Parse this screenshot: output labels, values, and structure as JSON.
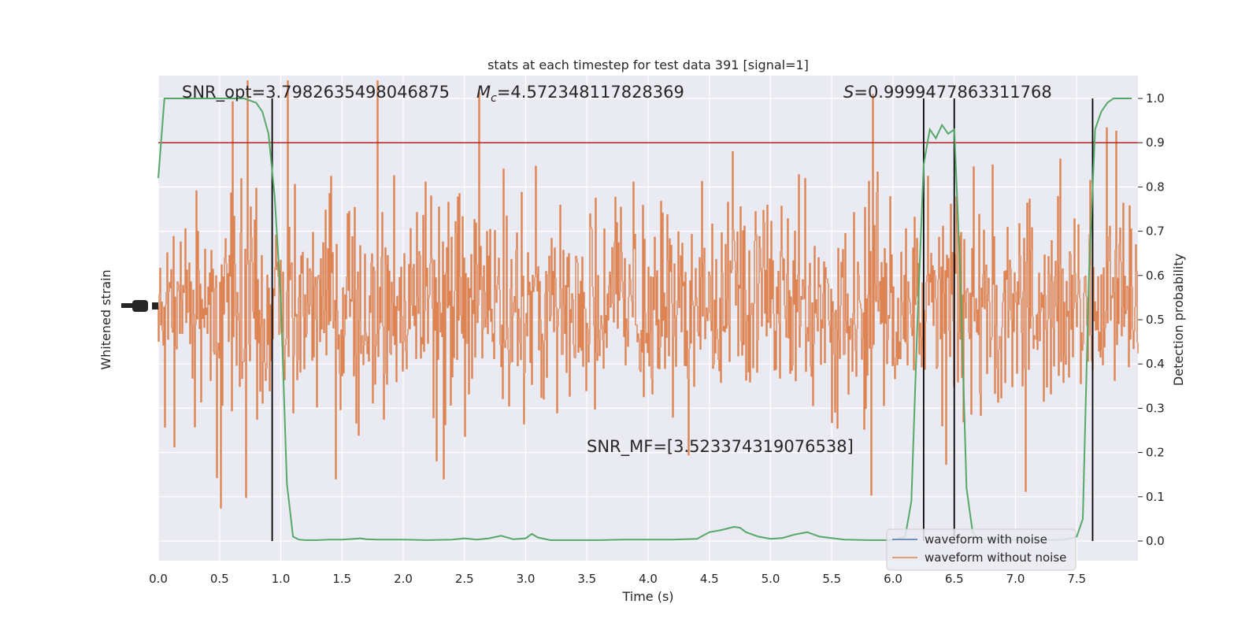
{
  "chart_data": {
    "type": "line",
    "title": "stats at each timestep for test data 391 [signal=1]",
    "xlabel": "Time (s)",
    "ylabel_left": "Whitened strain",
    "ylabel_right": "Detection probability",
    "xlim": [
      0,
      8
    ],
    "xticks": [
      "0.0",
      "0.5",
      "1.0",
      "1.5",
      "2.0",
      "2.5",
      "3.0",
      "3.5",
      "4.0",
      "4.5",
      "5.0",
      "5.5",
      "6.0",
      "6.5",
      "7.0",
      "7.5"
    ],
    "xtick_values": [
      0,
      0.5,
      1,
      1.5,
      2,
      2.5,
      3,
      3.5,
      4,
      4.5,
      5,
      5.5,
      6,
      6.5,
      7,
      7.5
    ],
    "ylim_right": [
      -0.05,
      1.05
    ],
    "yticks_right": [
      "0.0",
      "0.1",
      "0.2",
      "0.3",
      "0.4",
      "0.5",
      "0.6",
      "0.7",
      "0.8",
      "0.9",
      "1.0"
    ],
    "ytick_values_right": [
      0,
      0.1,
      0.2,
      0.3,
      0.4,
      0.5,
      0.6,
      0.7,
      0.8,
      0.9,
      1.0
    ],
    "threshold": 0.9,
    "vlines_x": [
      0.93,
      6.25,
      6.5,
      7.63
    ],
    "annotations": {
      "snr_opt": "SNR_opt=3.7982635498046875",
      "mc_symbol": "M",
      "mc_sub": "c",
      "mc_value": "=4.572348117828369",
      "s_symbol": "S",
      "s_value": "=0.9999477863311768",
      "snr_mf": "SNR_MF=[3.523374319076538]"
    },
    "series": [
      {
        "name": "waveform with noise",
        "color": "#4c72b0"
      },
      {
        "name": "waveform without noise",
        "color": "#dd8452"
      },
      {
        "name": "",
        "color": "#55a868",
        "x": [
          0,
          0.05,
          0.1,
          0.2,
          0.3,
          0.4,
          0.5,
          0.6,
          0.7,
          0.8,
          0.85,
          0.9,
          0.95,
          1.0,
          1.05,
          1.1,
          1.15,
          1.2,
          1.3,
          1.4,
          1.5,
          1.6,
          1.65,
          1.7,
          1.8,
          2.0,
          2.2,
          2.4,
          2.5,
          2.6,
          2.7,
          2.8,
          2.9,
          3.0,
          3.05,
          3.1,
          3.2,
          3.4,
          3.6,
          3.8,
          4.0,
          4.2,
          4.4,
          4.5,
          4.6,
          4.7,
          4.75,
          4.8,
          4.9,
          5.0,
          5.1,
          5.2,
          5.3,
          5.4,
          5.6,
          5.8,
          6.0,
          6.1,
          6.15,
          6.2,
          6.25,
          6.3,
          6.35,
          6.4,
          6.45,
          6.5,
          6.55,
          6.6,
          6.65,
          6.7,
          6.8,
          7.0,
          7.2,
          7.4,
          7.5,
          7.55,
          7.6,
          7.65,
          7.7,
          7.75,
          7.8,
          7.85,
          7.9,
          7.95
        ],
        "values": [
          0.82,
          1.0,
          1.0,
          1.0,
          1.0,
          1.0,
          1.0,
          1.0,
          1.0,
          0.99,
          0.97,
          0.92,
          0.78,
          0.55,
          0.13,
          0.01,
          0.003,
          0.002,
          0.002,
          0.003,
          0.003,
          0.005,
          0.006,
          0.004,
          0.003,
          0.003,
          0.002,
          0.003,
          0.006,
          0.003,
          0.006,
          0.012,
          0.004,
          0.006,
          0.016,
          0.008,
          0.002,
          0.002,
          0.002,
          0.003,
          0.003,
          0.003,
          0.005,
          0.02,
          0.025,
          0.032,
          0.03,
          0.02,
          0.01,
          0.005,
          0.007,
          0.015,
          0.02,
          0.01,
          0.003,
          0.002,
          0.002,
          0.01,
          0.09,
          0.5,
          0.85,
          0.93,
          0.91,
          0.94,
          0.92,
          0.93,
          0.6,
          0.12,
          0.02,
          0.003,
          0.003,
          0.002,
          0.002,
          0.003,
          0.01,
          0.05,
          0.6,
          0.93,
          0.97,
          0.99,
          1.0,
          1.0,
          1.0,
          1.0
        ]
      }
    ]
  }
}
